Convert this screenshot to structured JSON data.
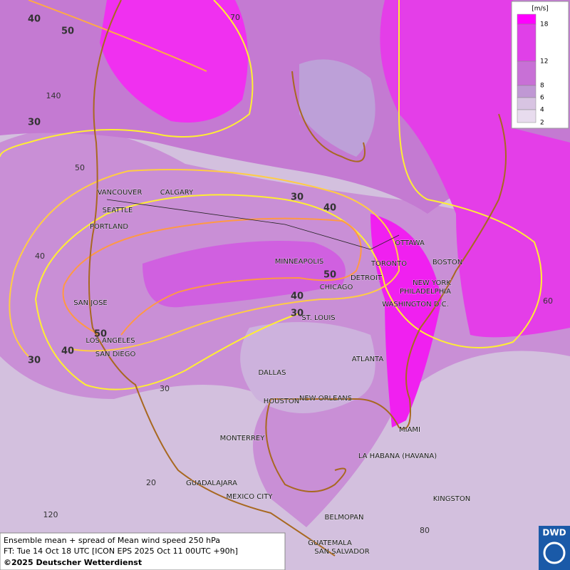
{
  "legend": {
    "unit": "[m/s]",
    "labels": [
      "18",
      "12",
      "8",
      "6",
      "4",
      "2"
    ]
  },
  "cities": [
    "VANCOUVER",
    "CALGARY",
    "SEATTLE",
    "PORTLAND",
    "SAN JOSE",
    "LOS ANGELES",
    "SAN DIEGO",
    "MINNEAPOLIS",
    "CHICAGO",
    "DETROIT",
    "TORONTO",
    "OTTAWA",
    "BOSTON",
    "NEW YORK",
    "PHILADELPHIA",
    "WASHINGTON D.C.",
    "ST. LOUIS",
    "ATLANTA",
    "DALLAS",
    "HOUSTON",
    "NEW ORLEANS",
    "MIAMI",
    "MONTERREY",
    "LA HABANA (HAVANA)",
    "GUADALAJARA",
    "MEXICO CITY",
    "KINGSTON",
    "BELMOPAN",
    "GUATEMALA",
    "SAN SALVADOR"
  ],
  "contour_labels": [
    "40",
    "50",
    "30",
    "30",
    "40",
    "50",
    "40",
    "30",
    "50",
    "40",
    "30"
  ],
  "grid_labels": [
    "70",
    "140",
    "50",
    "40",
    "30",
    "20",
    "120",
    "80",
    "60"
  ],
  "footer": [
    "Ensemble mean + spread of Mean wind speed 250 hPa",
    "FT: Tue 14 Oct 18 UTC [ICON EPS 2025 Oct 11 00UTC +90h]",
    "©2025 Deutscher Wetterdienst"
  ],
  "logo": "DWD"
}
